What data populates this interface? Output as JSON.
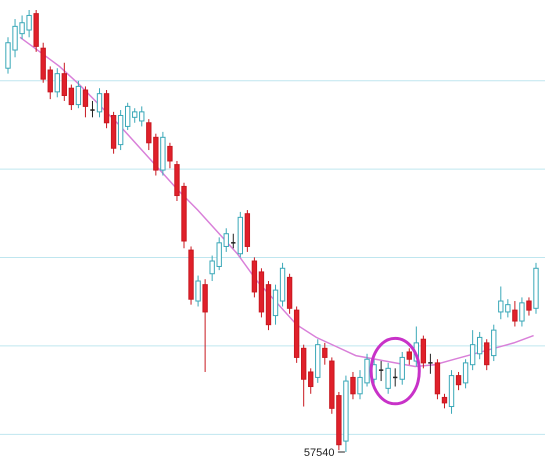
{
  "chart_data": {
    "type": "candlestick",
    "title": "",
    "xlabel": "",
    "ylabel": "",
    "grid": {
      "horizontal": true,
      "vertical": false
    },
    "colors": {
      "up_body": "#ffffff",
      "up_stroke": "#3aa8b8",
      "down_body": "#e0202a",
      "down_stroke": "#c81820",
      "moving_average": "#d980d9",
      "grid": "#bfe6ef",
      "annotation_circle": "#c832c8",
      "doji": "#222222"
    },
    "candles": [
      {
        "dir": "up",
        "open": 107,
        "close": 121,
        "high": 124,
        "low": 104
      },
      {
        "dir": "up",
        "open": 117,
        "close": 130,
        "high": 134,
        "low": 113
      },
      {
        "dir": "up",
        "open": 126,
        "close": 132,
        "high": 136,
        "low": 123
      },
      {
        "dir": "up",
        "open": 128,
        "close": 136,
        "high": 139,
        "low": 124
      },
      {
        "dir": "down",
        "open": 137,
        "close": 119,
        "high": 139,
        "low": 116
      },
      {
        "dir": "down",
        "open": 118,
        "close": 101,
        "high": 121,
        "low": 99
      },
      {
        "dir": "down",
        "open": 106,
        "close": 94,
        "high": 108,
        "low": 90
      },
      {
        "dir": "up",
        "open": 94,
        "close": 104,
        "high": 107,
        "low": 91
      },
      {
        "dir": "down",
        "open": 104,
        "close": 92,
        "high": 110,
        "low": 89
      },
      {
        "dir": "down",
        "open": 96,
        "close": 87,
        "high": 98,
        "low": 84
      },
      {
        "dir": "up",
        "open": 87,
        "close": 97,
        "high": 100,
        "low": 85
      },
      {
        "dir": "down",
        "open": 95,
        "close": 86,
        "high": 97,
        "low": 80
      },
      {
        "dir": "doji",
        "open": 84,
        "close": 84,
        "high": 89,
        "low": 80
      },
      {
        "dir": "up",
        "open": 83,
        "close": 93,
        "high": 96,
        "low": 80
      },
      {
        "dir": "down",
        "open": 93,
        "close": 77,
        "high": 95,
        "low": 74
      },
      {
        "dir": "down",
        "open": 81,
        "close": 63,
        "high": 83,
        "low": 60
      },
      {
        "dir": "up",
        "open": 65,
        "close": 81,
        "high": 84,
        "low": 62
      },
      {
        "dir": "up",
        "open": 75,
        "close": 86,
        "high": 88,
        "low": 73
      },
      {
        "dir": "up",
        "open": 80,
        "close": 83,
        "high": 85,
        "low": 77
      },
      {
        "dir": "up",
        "open": 78,
        "close": 83,
        "high": 86,
        "low": 75
      },
      {
        "dir": "down",
        "open": 77,
        "close": 66,
        "high": 79,
        "low": 62
      },
      {
        "dir": "down",
        "open": 69,
        "close": 51,
        "high": 71,
        "low": 48
      },
      {
        "dir": "up",
        "open": 51,
        "close": 69,
        "high": 72,
        "low": 48
      },
      {
        "dir": "down",
        "open": 64,
        "close": 56,
        "high": 66,
        "low": 52
      },
      {
        "dir": "down",
        "open": 54,
        "close": 37,
        "high": 56,
        "low": 34
      },
      {
        "dir": "down",
        "open": 42,
        "close": 12,
        "high": 44,
        "low": 8
      },
      {
        "dir": "down",
        "open": 7,
        "close": -20,
        "high": 9,
        "low": -23
      },
      {
        "dir": "up",
        "open": -21,
        "close": -10,
        "high": -7,
        "low": -24
      },
      {
        "dir": "down",
        "open": -12,
        "close": -27,
        "high": -9,
        "low": -60
      },
      {
        "dir": "up",
        "open": -6,
        "close": 1,
        "high": 4,
        "low": -10
      },
      {
        "dir": "up",
        "open": -2,
        "close": 11,
        "high": 14,
        "low": -4
      },
      {
        "dir": "up",
        "open": 9,
        "close": 16,
        "high": 19,
        "low": 6
      },
      {
        "dir": "doji",
        "open": 11,
        "close": 11,
        "high": 16,
        "low": 8
      },
      {
        "dir": "up",
        "open": 5,
        "close": 25,
        "high": 28,
        "low": 3
      },
      {
        "dir": "down",
        "open": 27,
        "close": 9,
        "high": 29,
        "low": 6
      },
      {
        "dir": "down",
        "open": 1,
        "close": -16,
        "high": 3,
        "low": -19
      },
      {
        "dir": "down",
        "open": -5,
        "close": -27,
        "high": -3,
        "low": -30
      },
      {
        "dir": "down",
        "open": -12,
        "close": -34,
        "high": -10,
        "low": -37
      },
      {
        "dir": "up",
        "open": -29,
        "close": -15,
        "high": -12,
        "low": -34
      },
      {
        "dir": "up",
        "open": -21,
        "close": -3,
        "high": 0,
        "low": -24
      },
      {
        "dir": "down",
        "open": -8,
        "close": -25,
        "high": -6,
        "low": -28
      },
      {
        "dir": "down",
        "open": -26,
        "close": -52,
        "high": -24,
        "low": -55
      },
      {
        "dir": "down",
        "open": -47,
        "close": -64,
        "high": -45,
        "low": -79
      },
      {
        "dir": "down",
        "open": -60,
        "close": -68,
        "high": -58,
        "low": -72
      },
      {
        "dir": "up",
        "open": -63,
        "close": -45,
        "high": -42,
        "low": -66
      },
      {
        "dir": "down",
        "open": -47,
        "close": -52,
        "high": -44,
        "low": -56
      },
      {
        "dir": "down",
        "open": -54,
        "close": -80,
        "high": -52,
        "low": -83
      },
      {
        "dir": "down",
        "open": -73,
        "close": -100,
        "high": -71,
        "low": -103
      },
      {
        "dir": "up",
        "open": -98,
        "close": -65,
        "high": -62,
        "low": -104
      },
      {
        "dir": "down",
        "open": -63,
        "close": -72,
        "high": -60,
        "low": -75
      },
      {
        "dir": "up",
        "open": -72,
        "close": -63,
        "high": -59,
        "low": -75
      },
      {
        "dir": "up",
        "open": -66,
        "close": -53,
        "high": -50,
        "low": -68
      },
      {
        "dir": "up",
        "open": -64,
        "close": -56,
        "high": -53,
        "low": -67
      },
      {
        "dir": "doji",
        "open": -59,
        "close": -59,
        "high": -54,
        "low": -65
      },
      {
        "dir": "up",
        "open": -69,
        "close": -58,
        "high": -55,
        "low": -72
      },
      {
        "dir": "doji",
        "open": -63,
        "close": -63,
        "high": -58,
        "low": -68
      },
      {
        "dir": "up",
        "open": -64,
        "close": -52,
        "high": -49,
        "low": -67
      },
      {
        "dir": "down",
        "open": -49,
        "close": -53,
        "high": -47,
        "low": -56
      },
      {
        "dir": "up",
        "open": -54,
        "close": -44,
        "high": -35,
        "low": -57
      },
      {
        "dir": "down",
        "open": -42,
        "close": -55,
        "high": -40,
        "low": -58
      },
      {
        "dir": "doji",
        "open": -55,
        "close": -55,
        "high": -50,
        "low": -61
      },
      {
        "dir": "down",
        "open": -55,
        "close": -72,
        "high": -53,
        "low": -75
      },
      {
        "dir": "down",
        "open": -74,
        "close": -77,
        "high": -72,
        "low": -80
      },
      {
        "dir": "up",
        "open": -79,
        "close": -62,
        "high": -59,
        "low": -83
      },
      {
        "dir": "down",
        "open": -62,
        "close": -67,
        "high": -60,
        "low": -70
      },
      {
        "dir": "up",
        "open": -66,
        "close": -55,
        "high": -53,
        "low": -69
      },
      {
        "dir": "up",
        "open": -56,
        "close": -45,
        "high": -37,
        "low": -59
      },
      {
        "dir": "up",
        "open": -50,
        "close": -41,
        "high": -38,
        "low": -53
      },
      {
        "dir": "down",
        "open": -44,
        "close": -56,
        "high": -42,
        "low": -59
      },
      {
        "dir": "up",
        "open": -51,
        "close": -37,
        "high": -34,
        "low": -54
      },
      {
        "dir": "up",
        "open": -27,
        "close": -21,
        "high": -13,
        "low": -31
      },
      {
        "dir": "up",
        "open": -27,
        "close": -23,
        "high": -20,
        "low": -30
      },
      {
        "dir": "down",
        "open": -26,
        "close": -32,
        "high": -21,
        "low": -35
      },
      {
        "dir": "up",
        "open": -32,
        "close": -22,
        "high": -19,
        "low": -35
      },
      {
        "dir": "down",
        "open": -21,
        "close": -26,
        "high": -19,
        "low": -29
      },
      {
        "dir": "up",
        "open": -25,
        "close": -3,
        "high": 0,
        "low": -28
      }
    ],
    "moving_average": [
      124,
      116,
      108,
      98,
      87,
      76,
      64,
      52,
      40,
      29,
      17,
      5,
      -10,
      -22,
      -34,
      -41,
      -46,
      -51,
      -53,
      -55,
      -57,
      -56,
      -53,
      -50,
      -47,
      -44,
      -40
    ],
    "annotations": {
      "low_label": "57540",
      "circle": {
        "target_candle_start": 53,
        "target_candle_end": 57
      }
    }
  }
}
